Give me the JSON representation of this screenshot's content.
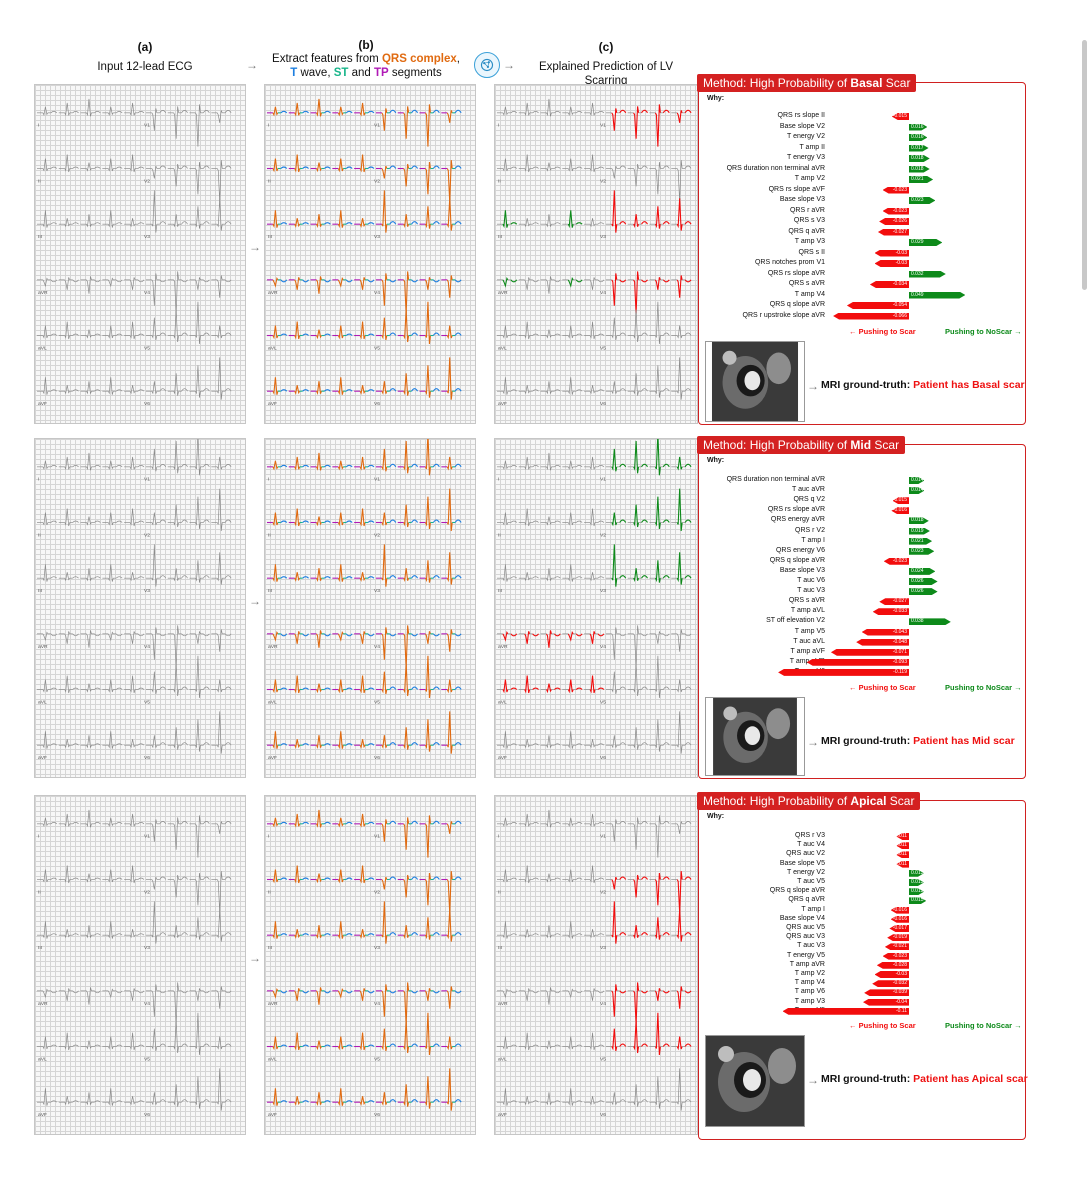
{
  "headers": {
    "a_letter": "(a)",
    "a_title": "Input 12-lead ECG",
    "b_letter": "(b)",
    "b_prefix": "Extract features from ",
    "b_qrs": "QRS complex",
    "b_t": "T",
    "b_wave": " wave, ",
    "b_st": "ST",
    "b_and": " and ",
    "b_tp": "TP",
    "b_suffix": " segments",
    "c_letter": "(c)",
    "c_title": "Explained Prediction of LV Scarring"
  },
  "colors": {
    "qrs": "#e06a10",
    "t": "#1e7fe0",
    "st": "#18b58a",
    "tp": "#b01ab6",
    "scar": "#f20d0d",
    "noscar": "#0d8a1a"
  },
  "ecg_leads": {
    "left": [
      "I",
      "II",
      "III",
      "aVR",
      "aVL",
      "aVF"
    ],
    "right": [
      "V1",
      "V2",
      "V3",
      "V4",
      "V5",
      "V6"
    ]
  },
  "panels": [
    {
      "title_prefix": "Method: High Probability of ",
      "title_bold": "Basal",
      "title_suffix": " Scar",
      "why": "Why:",
      "rows": [
        {
          "label": "QRS rs slope II",
          "value": -0.015
        },
        {
          "label": "Base slope V2",
          "value": 0.016
        },
        {
          "label": "T energy V2",
          "value": 0.016
        },
        {
          "label": "T amp II",
          "value": 0.017
        },
        {
          "label": "T energy V3",
          "value": 0.018
        },
        {
          "label": "QRS duration non terminal aVR",
          "value": 0.018
        },
        {
          "label": "T amp V2",
          "value": 0.021
        },
        {
          "label": "QRS rs slope aVF",
          "value": -0.023
        },
        {
          "label": "Base slope V3",
          "value": 0.023
        },
        {
          "label": "QRS r aVR",
          "value": -0.023
        },
        {
          "label": "QRS s V3",
          "value": -0.026
        },
        {
          "label": "QRS q aVR",
          "value": -0.027
        },
        {
          "label": "T amp V3",
          "value": 0.029
        },
        {
          "label": "QRS s II",
          "value": -0.03
        },
        {
          "label": "QRS notches prom V1",
          "value": -0.03
        },
        {
          "label": "QRS rs slope aVR",
          "value": 0.032
        },
        {
          "label": "QRS s aVR",
          "value": -0.034
        },
        {
          "label": "T amp V4",
          "value": 0.049
        },
        {
          "label": "QRS q slope aVR",
          "value": -0.054
        },
        {
          "label": "QRS r upstroke slope aVR",
          "value": -0.066
        }
      ],
      "legend_neg": "← Pushing to Scar",
      "legend_pos": "Pushing to NoScar →",
      "gt_prefix": "MRI ground-truth: ",
      "gt_value": "Patient has Basal scar"
    },
    {
      "title_prefix": "Method: High Probability of ",
      "title_bold": "Mid",
      "title_suffix": " Scar",
      "why": "Why:",
      "rows": [
        {
          "label": "QRS duration non terminal aVR",
          "value": 0.014
        },
        {
          "label": "T auc aVR",
          "value": 0.014
        },
        {
          "label": "QRS q V2",
          "value": -0.015
        },
        {
          "label": "QRS rs slope aVR",
          "value": -0.016
        },
        {
          "label": "QRS energy aVR",
          "value": 0.018
        },
        {
          "label": "QRS r V2",
          "value": 0.019
        },
        {
          "label": "T amp I",
          "value": 0.021
        },
        {
          "label": "QRS energy V6",
          "value": 0.023
        },
        {
          "label": "QRS q slope aVR",
          "value": -0.023
        },
        {
          "label": "Base slope V3",
          "value": 0.024
        },
        {
          "label": "T auc V6",
          "value": 0.026
        },
        {
          "label": "T auc V3",
          "value": 0.026
        },
        {
          "label": "QRS s aVR",
          "value": -0.027
        },
        {
          "label": "T amp aVL",
          "value": -0.033
        },
        {
          "label": "ST off elevation V2",
          "value": 0.038
        },
        {
          "label": "T amp V5",
          "value": -0.043
        },
        {
          "label": "T auc aVL",
          "value": -0.048
        },
        {
          "label": "T amp aVF",
          "value": -0.071
        },
        {
          "label": "T amp aVR",
          "value": -0.093
        },
        {
          "label": "T amp V6",
          "value": -0.119
        }
      ],
      "legend_neg": "← Pushing to Scar",
      "legend_pos": "Pushing to NoScar →",
      "gt_prefix": "MRI ground-truth: ",
      "gt_value": "Patient has Mid scar"
    },
    {
      "title_prefix": "Method: High Probability of ",
      "title_bold": "Apical",
      "title_suffix": " Scar",
      "why": "Why:",
      "rows": [
        {
          "label": "QRS r V3",
          "value": -0.011
        },
        {
          "label": "T auc V4",
          "value": -0.011
        },
        {
          "label": "QRS auc V2",
          "value": -0.011
        },
        {
          "label": "Base slope V5",
          "value": -0.011
        },
        {
          "label": "T energy V2",
          "value": 0.013
        },
        {
          "label": "T auc V5",
          "value": 0.013
        },
        {
          "label": "QRS q slope aVR",
          "value": 0.013
        },
        {
          "label": "QRS q aVR",
          "value": 0.015
        },
        {
          "label": "T amp I",
          "value": -0.016
        },
        {
          "label": "Base slope V4",
          "value": -0.016
        },
        {
          "label": "QRS auc V5",
          "value": -0.017
        },
        {
          "label": "QRS auc V3",
          "value": -0.019
        },
        {
          "label": "T auc V3",
          "value": -0.021
        },
        {
          "label": "T energy V5",
          "value": -0.023
        },
        {
          "label": "T amp aVR",
          "value": -0.028
        },
        {
          "label": "T amp V2",
          "value": -0.03
        },
        {
          "label": "T amp V4",
          "value": -0.032
        },
        {
          "label": "T amp V6",
          "value": -0.039
        },
        {
          "label": "T amp V3",
          "value": -0.04
        },
        {
          "label": "T amp V5",
          "value": -0.11
        }
      ],
      "legend_neg": "← Pushing to Scar",
      "legend_pos": "Pushing to NoScar →",
      "gt_prefix": "MRI ground-truth: ",
      "gt_value": "Patient has Apical scar"
    }
  ]
}
